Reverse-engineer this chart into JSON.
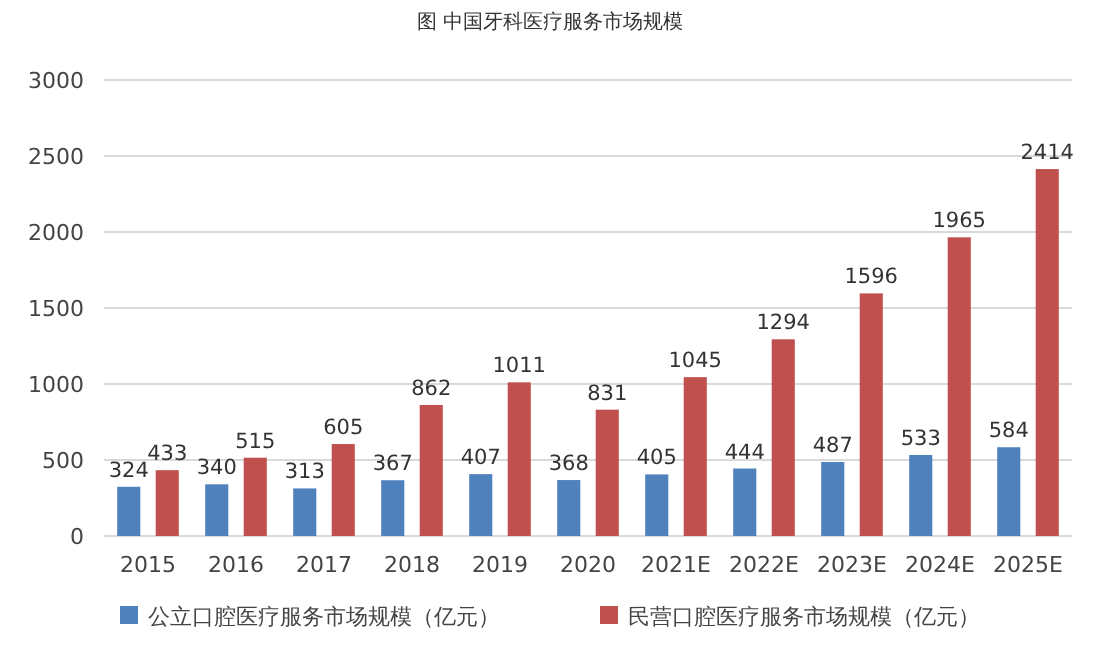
{
  "chart_data": {
    "type": "bar",
    "title": "图 中国牙科医疗服务市场规模",
    "categories": [
      "2015",
      "2016",
      "2017",
      "2018",
      "2019",
      "2020",
      "2021E",
      "2022E",
      "2023E",
      "2024E",
      "2025E"
    ],
    "series": [
      {
        "name": "公立口腔医疗服务市场规模（亿元）",
        "color": "#4f81bd",
        "values": [
          324,
          340,
          313,
          367,
          407,
          368,
          405,
          444,
          487,
          533,
          584
        ]
      },
      {
        "name": "民营口腔医疗服务市场规模（亿元）",
        "color": "#c0504d",
        "values": [
          433,
          515,
          605,
          862,
          1011,
          831,
          1045,
          1294,
          1596,
          1965,
          2414
        ]
      }
    ],
    "ylim": [
      0,
      3000
    ],
    "yticks": [
      0,
      500,
      1000,
      1500,
      2000,
      2500,
      3000
    ],
    "grid": "y",
    "legend": "bottom",
    "data_labels": true
  }
}
